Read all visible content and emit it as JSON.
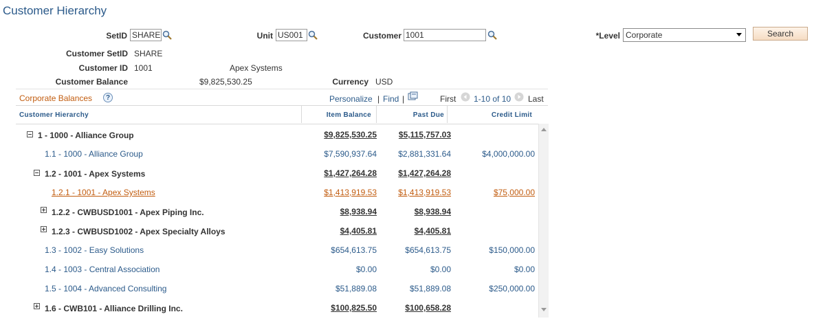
{
  "page_title": "Customer Hierarchy",
  "search": {
    "setid_label": "SetID",
    "setid_value": "SHARE",
    "unit_label": "Unit",
    "unit_value": "US001",
    "customer_label": "Customer",
    "customer_value": "1001",
    "level_label": "*Level",
    "level_value": "Corporate",
    "search_button": "Search"
  },
  "info": {
    "customer_setid_label": "Customer SetID",
    "customer_setid_value": "SHARE",
    "customer_id_label": "Customer ID",
    "customer_id_value": "1001",
    "customer_name": "Apex Systems",
    "customer_balance_label": "Customer Balance",
    "customer_balance_value": "$9,825,530.25",
    "currency_label": "Currency",
    "currency_value": "USD"
  },
  "grid": {
    "title": "Corporate Balances",
    "help_icon": "?",
    "personalize": "Personalize",
    "sep1": "|",
    "find": "Find",
    "sep2": "|",
    "first": "First",
    "range": "1-10 of 10",
    "last": "Last",
    "columns": [
      "Customer Hierarchy",
      "Item Balance",
      "Past Due",
      "Credit Limit"
    ],
    "rows": [
      {
        "label": "1 - 1000 - Alliance Group",
        "item_balance": "$9,825,530.25",
        "past_due": "$5,115,757.03",
        "credit_limit": ""
      },
      {
        "label": "1.1 - 1000 - Alliance Group",
        "item_balance": "$7,590,937.64",
        "past_due": "$2,881,331.64",
        "credit_limit": "$4,000,000.00"
      },
      {
        "label": "1.2 - 1001 - Apex Systems",
        "item_balance": "$1,427,264.28",
        "past_due": "$1,427,264.28",
        "credit_limit": ""
      },
      {
        "label": "1.2.1 - 1001 - Apex Systems",
        "item_balance": "$1,413,919.53",
        "past_due": "$1,413,919.53",
        "credit_limit": "$75,000.00"
      },
      {
        "label": "1.2.2 - CWBUSD1001 - Apex Piping Inc.",
        "item_balance": "$8,938.94",
        "past_due": "$8,938.94",
        "credit_limit": ""
      },
      {
        "label": "1.2.3 - CWBUSD1002 - Apex Specialty Alloys",
        "item_balance": "$4,405.81",
        "past_due": "$4,405.81",
        "credit_limit": ""
      },
      {
        "label": "1.3 - 1002 - Easy Solutions",
        "item_balance": "$654,613.75",
        "past_due": "$654,613.75",
        "credit_limit": "$150,000.00"
      },
      {
        "label": "1.4 - 1003 - Central Association",
        "item_balance": "$0.00",
        "past_due": "$0.00",
        "credit_limit": "$0.00"
      },
      {
        "label": "1.5 - 1004 - Advanced Consulting",
        "item_balance": "$51,889.08",
        "past_due": "$51,889.08",
        "credit_limit": "$250,000.00"
      },
      {
        "label": "1.6 - CWB101 - Alliance Drilling Inc.",
        "item_balance": "$100,825.50",
        "past_due": "$100,658.28",
        "credit_limit": ""
      }
    ]
  }
}
